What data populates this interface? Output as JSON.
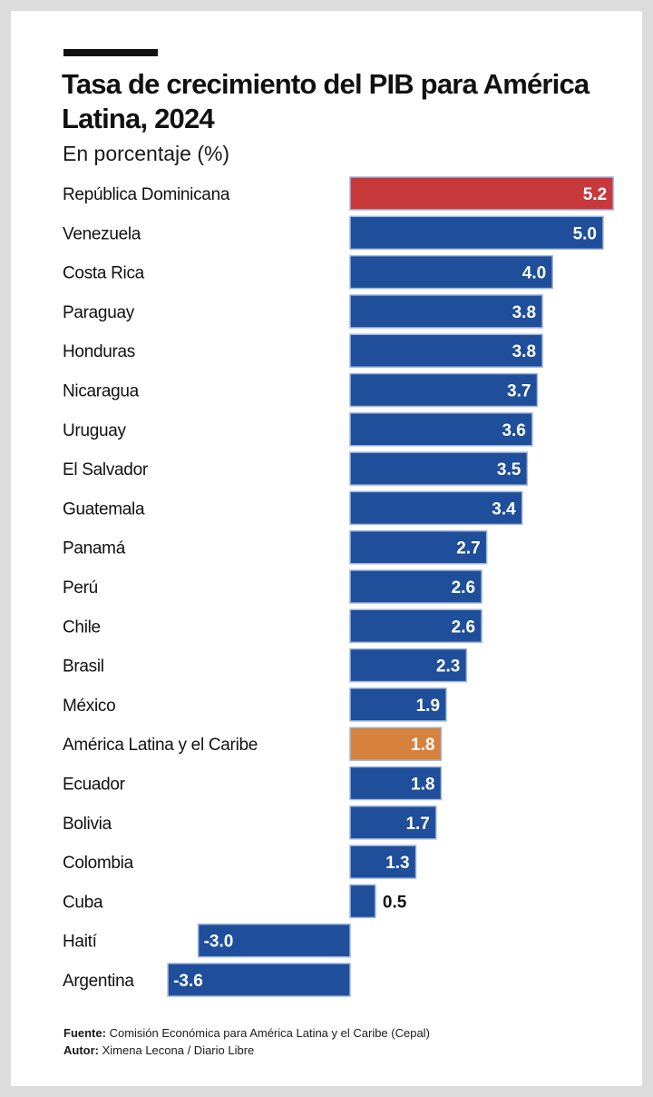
{
  "title": "Tasa de crecimiento del PIB para América Latina, 2024",
  "subtitle": "En porcentaje (%)",
  "colors": {
    "default": "#1f4e9a",
    "highlight": "#c8393b",
    "region": "#d7823c"
  },
  "chart_data": {
    "type": "bar",
    "orientation": "horizontal",
    "categories": [
      "República Dominicana",
      "Venezuela",
      "Costa Rica",
      "Paraguay",
      "Honduras",
      "Nicaragua",
      "Uruguay",
      "El Salvador",
      "Guatemala",
      "Panamá",
      "Perú",
      "Chile",
      "Brasil",
      "México",
      "América Latina y el Caribe",
      "Ecuador",
      "Bolivia",
      "Colombia",
      "Cuba",
      "Haití",
      "Argentina"
    ],
    "values": [
      5.2,
      5.0,
      4.0,
      3.8,
      3.8,
      3.7,
      3.6,
      3.5,
      3.4,
      2.7,
      2.6,
      2.6,
      2.3,
      1.9,
      1.8,
      1.8,
      1.7,
      1.3,
      0.5,
      -3.0,
      -3.6
    ],
    "value_labels": [
      "5.2",
      "5.0",
      "4.0",
      "3.8",
      "3.8",
      "3.7",
      "3.6",
      "3.5",
      "3.4",
      "2.7",
      "2.6",
      "2.6",
      "2.3",
      "1.9",
      "1.8",
      "1.8",
      "1.7",
      "1.3",
      "0.5",
      "-3.0",
      "-3.6"
    ],
    "highlight": {
      "República Dominicana": "highlight",
      "América Latina y el Caribe": "region"
    },
    "xlim": [
      -3.6,
      5.2
    ],
    "grid": false,
    "legend": "none"
  },
  "footer": {
    "source_label": "Fuente:",
    "source_text": "Comisión Económica para América Latina y el Caribe (Cepal)",
    "author_label": "Autor:",
    "author_text": "Ximena Lecona / Diario Libre"
  }
}
